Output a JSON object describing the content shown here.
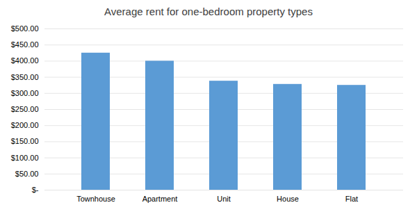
{
  "chart_data": {
    "type": "bar",
    "title": "Average rent for one-bedroom property types",
    "categories": [
      "Townhouse",
      "Apartment",
      "Unit",
      "House",
      "Flat"
    ],
    "values": [
      425,
      400,
      338,
      328,
      325
    ],
    "color": "#5b9bd5",
    "ylim": [
      0,
      500
    ],
    "yticks": [
      {
        "value": 0,
        "label": "$-"
      },
      {
        "value": 50,
        "label": "$50.00"
      },
      {
        "value": 100,
        "label": "$100.00"
      },
      {
        "value": 150,
        "label": "$150.00"
      },
      {
        "value": 200,
        "label": "$200.00"
      },
      {
        "value": 250,
        "label": "$250.00"
      },
      {
        "value": 300,
        "label": "$300.00"
      },
      {
        "value": 350,
        "label": "$350.00"
      },
      {
        "value": 400,
        "label": "$400.00"
      },
      {
        "value": 450,
        "label": "$450.00"
      },
      {
        "value": 500,
        "label": "$500.00"
      }
    ],
    "grid": true
  }
}
